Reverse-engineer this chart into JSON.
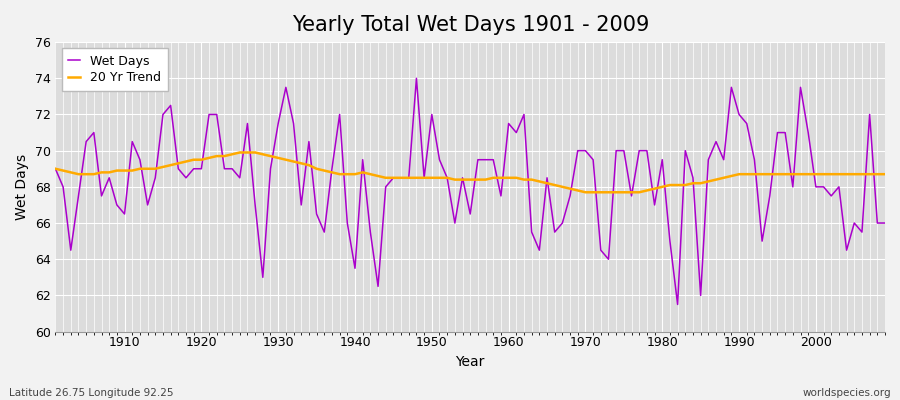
{
  "title": "Yearly Total Wet Days 1901 - 2009",
  "xlabel": "Year",
  "ylabel": "Wet Days",
  "footnote_left": "Latitude 26.75 Longitude 92.25",
  "footnote_right": "worldspecies.org",
  "years": [
    1901,
    1902,
    1903,
    1904,
    1905,
    1906,
    1907,
    1908,
    1909,
    1910,
    1911,
    1912,
    1913,
    1914,
    1915,
    1916,
    1917,
    1918,
    1919,
    1920,
    1921,
    1922,
    1923,
    1924,
    1925,
    1926,
    1927,
    1928,
    1929,
    1930,
    1931,
    1932,
    1933,
    1934,
    1935,
    1936,
    1937,
    1938,
    1939,
    1940,
    1941,
    1942,
    1943,
    1944,
    1945,
    1946,
    1947,
    1948,
    1949,
    1950,
    1951,
    1952,
    1953,
    1954,
    1955,
    1956,
    1957,
    1958,
    1959,
    1960,
    1961,
    1962,
    1963,
    1964,
    1965,
    1966,
    1967,
    1968,
    1969,
    1970,
    1971,
    1972,
    1973,
    1974,
    1975,
    1976,
    1977,
    1978,
    1979,
    1980,
    1981,
    1982,
    1983,
    1984,
    1985,
    1986,
    1987,
    1988,
    1989,
    1990,
    1991,
    1992,
    1993,
    1994,
    1995,
    1996,
    1997,
    1998,
    1999,
    2000,
    2001,
    2002,
    2003,
    2004,
    2005,
    2006,
    2007,
    2008,
    2009
  ],
  "wet_days": [
    69.0,
    68.0,
    64.5,
    67.5,
    70.5,
    71.0,
    67.5,
    68.5,
    67.0,
    66.5,
    70.5,
    69.5,
    67.0,
    68.5,
    72.0,
    72.5,
    69.0,
    68.5,
    69.0,
    69.0,
    72.0,
    72.0,
    69.0,
    69.0,
    68.5,
    71.5,
    67.0,
    63.0,
    69.0,
    71.5,
    73.5,
    71.5,
    67.0,
    70.5,
    66.5,
    65.5,
    69.0,
    72.0,
    66.0,
    63.5,
    69.5,
    65.5,
    62.5,
    68.0,
    68.5,
    68.5,
    68.5,
    74.0,
    68.5,
    72.0,
    69.5,
    68.5,
    66.0,
    68.5,
    66.5,
    69.5,
    69.5,
    69.5,
    67.5,
    71.5,
    71.0,
    72.0,
    65.5,
    64.5,
    68.5,
    65.5,
    66.0,
    67.5,
    70.0,
    70.0,
    69.5,
    64.5,
    64.0,
    70.0,
    70.0,
    67.5,
    70.0,
    70.0,
    67.0,
    69.5,
    65.0,
    61.5,
    70.0,
    68.5,
    62.0,
    69.5,
    70.5,
    69.5,
    73.5,
    72.0,
    71.5,
    69.5,
    65.0,
    67.5,
    71.0,
    71.0,
    68.0,
    73.5,
    71.0,
    68.0,
    68.0,
    67.5,
    68.0,
    64.5,
    66.0,
    65.5,
    72.0,
    66.0,
    66.0
  ],
  "trend": [
    69.0,
    68.9,
    68.8,
    68.7,
    68.7,
    68.7,
    68.8,
    68.8,
    68.9,
    68.9,
    68.9,
    69.0,
    69.0,
    69.0,
    69.1,
    69.2,
    69.3,
    69.4,
    69.5,
    69.5,
    69.6,
    69.7,
    69.7,
    69.8,
    69.9,
    69.9,
    69.9,
    69.8,
    69.7,
    69.6,
    69.5,
    69.4,
    69.3,
    69.2,
    69.0,
    68.9,
    68.8,
    68.7,
    68.7,
    68.7,
    68.8,
    68.7,
    68.6,
    68.5,
    68.5,
    68.5,
    68.5,
    68.5,
    68.5,
    68.5,
    68.5,
    68.5,
    68.4,
    68.4,
    68.4,
    68.4,
    68.4,
    68.5,
    68.5,
    68.5,
    68.5,
    68.4,
    68.4,
    68.3,
    68.2,
    68.1,
    68.0,
    67.9,
    67.8,
    67.7,
    67.7,
    67.7,
    67.7,
    67.7,
    67.7,
    67.7,
    67.7,
    67.8,
    67.9,
    68.0,
    68.1,
    68.1,
    68.1,
    68.2,
    68.2,
    68.3,
    68.4,
    68.5,
    68.6,
    68.7,
    68.7,
    68.7,
    68.7,
    68.7,
    68.7,
    68.7,
    68.7,
    68.7,
    68.7,
    68.7,
    68.7,
    68.7,
    68.7,
    68.7,
    68.7,
    68.7,
    68.7,
    68.7,
    68.7
  ],
  "wet_days_color": "#aa00cc",
  "trend_color": "#ffaa00",
  "fig_bg_color": "#f2f2f2",
  "plot_bg_color": "#dcdcdc",
  "grid_color": "#ffffff",
  "border_color": "#999999",
  "ylim": [
    60,
    76
  ],
  "yticks": [
    60,
    62,
    64,
    66,
    68,
    70,
    72,
    74,
    76
  ],
  "title_fontsize": 15,
  "axis_label_fontsize": 10,
  "tick_fontsize": 9,
  "legend_fontsize": 9
}
